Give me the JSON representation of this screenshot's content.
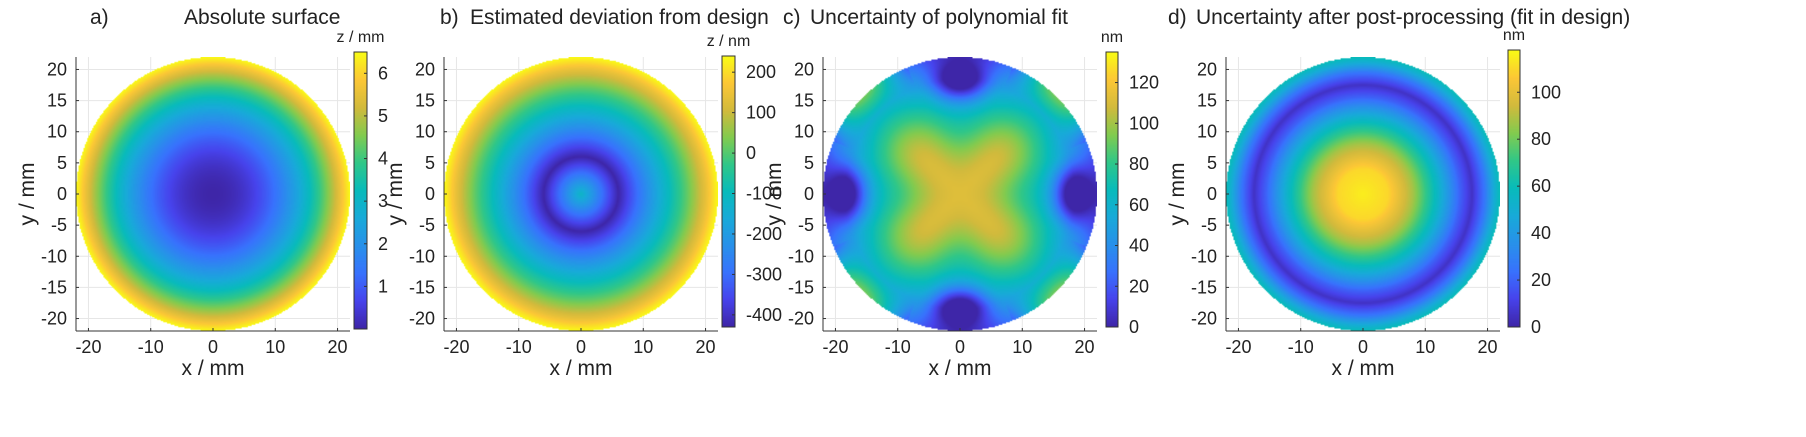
{
  "chart_data": [
    {
      "type": "heatmap",
      "panel_label": "a)",
      "title": "Absolute surface",
      "xlabel": "x / mm",
      "ylabel": "y / mm",
      "xlim": [
        -22,
        22
      ],
      "ylim": [
        -22,
        22
      ],
      "xticks": [
        -20,
        -10,
        0,
        10,
        20
      ],
      "yticks": [
        -20,
        -15,
        -10,
        -5,
        0,
        5,
        10,
        15,
        20
      ],
      "aperture_radius": 22,
      "colorbar": {
        "label": "z / mm",
        "min": 0,
        "max": 6.5,
        "ticks": [
          1,
          2,
          3,
          4,
          5,
          6
        ]
      },
      "field_model": "z = 6.5 * (r/22)^2"
    },
    {
      "type": "heatmap",
      "panel_label": "b)",
      "title": "Estimated deviation from design",
      "xlabel": "x / mm",
      "ylabel": "y / mm",
      "xlim": [
        -22,
        22
      ],
      "ylim": [
        -22,
        22
      ],
      "xticks": [
        -20,
        -10,
        0,
        10,
        20
      ],
      "yticks": [
        -20,
        -15,
        -10,
        -5,
        0,
        5,
        10,
        15,
        20
      ],
      "aperture_radius": 22,
      "colorbar": {
        "label": "z / nm",
        "min": -430,
        "max": 240,
        "ticks": [
          -400,
          -300,
          -200,
          -100,
          0,
          100,
          200
        ]
      },
      "field_model": "center -120 nm, minimum ring -430 nm at r=6 mm, +240 nm at edge"
    },
    {
      "type": "heatmap",
      "panel_label": "c)",
      "title": "Uncertainty of polynomial fit",
      "xlabel": "x / mm",
      "ylabel": "y / mm",
      "xlim": [
        -22,
        22
      ],
      "ylim": [
        -22,
        22
      ],
      "xticks": [
        -20,
        -10,
        0,
        10,
        20
      ],
      "yticks": [
        -20,
        -15,
        -10,
        -5,
        0,
        5,
        10,
        15,
        20
      ],
      "aperture_radius": 22,
      "colorbar": {
        "label": "nm",
        "min": 0,
        "max": 135,
        "ticks": [
          0,
          20,
          40,
          60,
          80,
          100,
          120
        ]
      },
      "field_model": "center ~110 nm, four lobes 0 nm at r=18 mm on axes, ~110 nm at diagonal edges"
    },
    {
      "type": "heatmap",
      "panel_label": "d)",
      "title": "Uncertainty after post-processing (fit in design)",
      "xlabel": "x / mm",
      "ylabel": "y / mm",
      "xlim": [
        -22,
        22
      ],
      "ylim": [
        -22,
        22
      ],
      "xticks": [
        -20,
        -10,
        0,
        10,
        20
      ],
      "yticks": [
        -20,
        -15,
        -10,
        -5,
        0,
        5,
        10,
        15,
        20
      ],
      "aperture_radius": 22,
      "colorbar": {
        "label": "nm",
        "min": 0,
        "max": 118,
        "ticks": [
          0,
          20,
          40,
          60,
          80,
          100
        ]
      },
      "field_model": "center 115 nm, minimum ring 5 nm at r=17.5 mm, ~60 nm at edge"
    }
  ]
}
